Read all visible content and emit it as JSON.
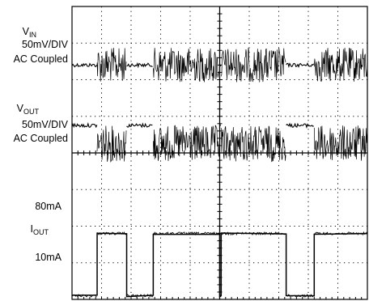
{
  "chart_data": {
    "type": "line",
    "title": "",
    "xlabel": "",
    "ylabel": "",
    "grid": true,
    "grid_divisions": {
      "x": 10,
      "y": 8
    },
    "x_unit": "DIV",
    "xlim": [
      0,
      10
    ],
    "labels": {
      "vin": {
        "main": "V",
        "sub": "IN",
        "scale": "50mV/DIV",
        "coupling": "AC Coupled"
      },
      "vout": {
        "main": "V",
        "sub": "OUT",
        "scale": "50mV/DIV",
        "coupling": "AC Coupled"
      },
      "iout": {
        "high": "80mA",
        "main": "I",
        "sub": "OUT",
        "low": "10mA"
      }
    },
    "series": [
      {
        "key": "vin",
        "unit": "DIV",
        "segments": [
          {
            "x": [
              0.0,
              0.85
            ],
            "state": "quiet",
            "level": 0.0,
            "noise": 0.1
          },
          {
            "x": [
              0.85,
              1.85
            ],
            "state": "noisy",
            "level": 0.0,
            "noise": 0.95
          },
          {
            "x": [
              1.85,
              2.75
            ],
            "state": "quiet",
            "level": 0.0,
            "noise": 0.1
          },
          {
            "x": [
              2.75,
              5.0
            ],
            "state": "noisy",
            "level": 0.0,
            "noise": 0.95
          },
          {
            "x": [
              5.0,
              5.05
            ],
            "state": "quiet",
            "level": 0.0,
            "noise": 0.1
          },
          {
            "x": [
              5.05,
              7.25
            ],
            "state": "noisy",
            "level": 0.0,
            "noise": 0.95
          },
          {
            "x": [
              7.25,
              8.2
            ],
            "state": "quiet",
            "level": 0.0,
            "noise": 0.1
          },
          {
            "x": [
              8.2,
              10.0
            ],
            "state": "noisy",
            "level": 0.0,
            "noise": 0.95
          }
        ]
      },
      {
        "key": "vout",
        "unit": "DIV",
        "segments": [
          {
            "x": [
              0.0,
              0.85
            ],
            "state": "quiet",
            "level": 0.35,
            "noise": 0.1
          },
          {
            "x": [
              0.85,
              1.85
            ],
            "state": "noisy",
            "level": -0.15,
            "noise": 1.0
          },
          {
            "x": [
              1.85,
              2.75
            ],
            "state": "quiet",
            "level": 0.35,
            "noise": 0.1
          },
          {
            "x": [
              2.75,
              5.0
            ],
            "state": "noisy",
            "level": -0.15,
            "noise": 1.0
          },
          {
            "x": [
              5.0,
              5.05
            ],
            "state": "quiet",
            "level": 0.35,
            "noise": 0.1
          },
          {
            "x": [
              5.05,
              7.25
            ],
            "state": "noisy",
            "level": -0.15,
            "noise": 1.0
          },
          {
            "x": [
              7.25,
              8.2
            ],
            "state": "quiet",
            "level": 0.35,
            "noise": 0.1
          },
          {
            "x": [
              8.2,
              10.0
            ],
            "state": "noisy",
            "level": -0.15,
            "noise": 1.0
          }
        ]
      },
      {
        "key": "iout",
        "unit": "mA",
        "low": 10,
        "high": 80,
        "transitions_x": [
          0.85,
          1.85,
          2.75,
          5.0,
          5.05,
          7.25,
          8.2
        ],
        "initial_state": "low",
        "x": [
          0.0,
          0.85,
          0.85,
          1.85,
          1.85,
          2.75,
          2.75,
          5.0,
          5.0,
          5.05,
          5.05,
          7.25,
          7.25,
          8.2,
          8.2,
          10.0
        ],
        "y": [
          10,
          10,
          80,
          80,
          10,
          10,
          80,
          80,
          10,
          10,
          80,
          80,
          10,
          10,
          80,
          80
        ]
      }
    ],
    "colors": {
      "trace": "#000000",
      "grid": "#000000",
      "background": "#ffffff"
    }
  }
}
